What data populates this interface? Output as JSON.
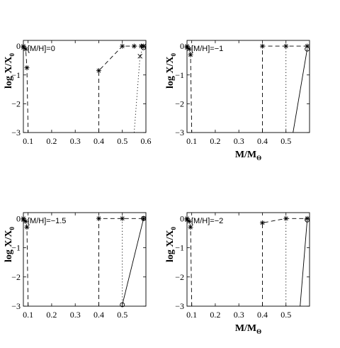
{
  "chart_data": [
    {
      "type": "line",
      "annotation": "[M/H]=0",
      "xlabel": "M/M",
      "ylabel": "log X/X",
      "xlim": [
        0.08,
        0.6
      ],
      "ylim": [
        -3,
        0.2
      ],
      "xticks": [
        "0.1",
        "0.2",
        "0.3",
        "0.4",
        "0.5",
        "0.6"
      ],
      "yticks": [
        "0",
        "-1",
        "-2",
        "-3"
      ],
      "show_x_label": false,
      "series": [
        {
          "style": "dashed",
          "marker": "star",
          "x": [
            0.08,
            0.08,
            0.09,
            0.095,
            0.1
          ],
          "y": [
            0,
            -0.05,
            -0.1,
            -0.75,
            -3
          ]
        },
        {
          "style": "dashed",
          "marker": "star",
          "x": [
            0.4,
            0.4,
            0.5,
            0.55,
            0.58,
            0.59
          ],
          "y": [
            -3,
            -0.85,
            0,
            0,
            0,
            0
          ]
        },
        {
          "style": "dotted",
          "marker": "cross",
          "x": [
            0.55,
            0.575,
            0.59
          ],
          "y": [
            -3,
            -0.35,
            0
          ]
        },
        {
          "style": "solid",
          "marker": "circle",
          "x": [
            0.59
          ],
          "y": [
            -0.05
          ]
        }
      ]
    },
    {
      "type": "line",
      "annotation": "[M/H]=−1",
      "xlabel": "M/M",
      "ylabel": "log X/X",
      "xlim": [
        0.08,
        0.6
      ],
      "ylim": [
        -3,
        0.2
      ],
      "xticks": [
        "0.1",
        "0.2",
        "0.3",
        "0.4",
        "0.5"
      ],
      "yticks": [
        "0",
        "-1",
        "-2",
        "-3"
      ],
      "show_x_label": true,
      "series": [
        {
          "style": "dashed",
          "marker": "star",
          "x": [
            0.08,
            0.08,
            0.09,
            0.095,
            0.1
          ],
          "y": [
            0,
            -0.05,
            -0.1,
            -0.3,
            -3
          ]
        },
        {
          "style": "dashed",
          "marker": "star",
          "x": [
            0.4,
            0.4,
            0.5,
            0.59
          ],
          "y": [
            -3,
            0,
            0,
            0
          ]
        },
        {
          "style": "dotted",
          "marker": "none",
          "x": [
            0.5,
            0.5
          ],
          "y": [
            -3,
            0
          ]
        },
        {
          "style": "solid",
          "marker": "circle",
          "x": [
            0.53,
            0.59
          ],
          "y": [
            -3,
            -0.1
          ]
        }
      ]
    },
    {
      "type": "line",
      "annotation": "[M/H]=−1.5",
      "xlabel": "M/M",
      "ylabel": "log X/X",
      "xlim": [
        0.08,
        0.6
      ],
      "ylim": [
        -3,
        0.2
      ],
      "xticks": [
        "0.1",
        "0.2",
        "0.3",
        "0.4",
        "0.5"
      ],
      "yticks": [
        "0",
        "-1",
        "-2",
        "-3"
      ],
      "show_x_label": false,
      "series": [
        {
          "style": "dashed",
          "marker": "star",
          "x": [
            0.08,
            0.08,
            0.09,
            0.095,
            0.1
          ],
          "y": [
            0,
            -0.05,
            -0.1,
            -0.3,
            -3
          ]
        },
        {
          "style": "dashed",
          "marker": "star",
          "x": [
            0.4,
            0.4,
            0.5,
            0.59
          ],
          "y": [
            -3,
            0,
            0,
            0
          ]
        },
        {
          "style": "dotted",
          "marker": "none",
          "x": [
            0.5,
            0.5
          ],
          "y": [
            -3,
            0
          ]
        },
        {
          "style": "solid",
          "marker": "circle",
          "x": [
            0.5,
            0.59
          ],
          "y": [
            -2.95,
            0
          ]
        }
      ]
    },
    {
      "type": "line",
      "annotation": "[M/H]=−2",
      "xlabel": "M/M",
      "ylabel": "log X/X",
      "xlim": [
        0.08,
        0.6
      ],
      "ylim": [
        -3,
        0.2
      ],
      "xticks": [
        "0.1",
        "0.2",
        "0.3",
        "0.4",
        "0.5"
      ],
      "yticks": [
        "0",
        "-1",
        "-2",
        "-3"
      ],
      "show_x_label": true,
      "series": [
        {
          "style": "dashed",
          "marker": "star",
          "x": [
            0.08,
            0.08,
            0.09,
            0.095,
            0.1
          ],
          "y": [
            0,
            -0.05,
            -0.1,
            -0.3,
            -3
          ]
        },
        {
          "style": "dashed",
          "marker": "star",
          "x": [
            0.4,
            0.4,
            0.5,
            0.59
          ],
          "y": [
            -3,
            -0.15,
            0,
            0
          ]
        },
        {
          "style": "dotted",
          "marker": "none",
          "x": [
            0.5,
            0.5
          ],
          "y": [
            -3,
            0
          ]
        },
        {
          "style": "solid",
          "marker": "circle",
          "x": [
            0.56,
            0.59
          ],
          "y": [
            -3,
            -0.05
          ]
        }
      ]
    }
  ],
  "axis_subscripts": {
    "mass": "Θ",
    "abundance": "0"
  }
}
